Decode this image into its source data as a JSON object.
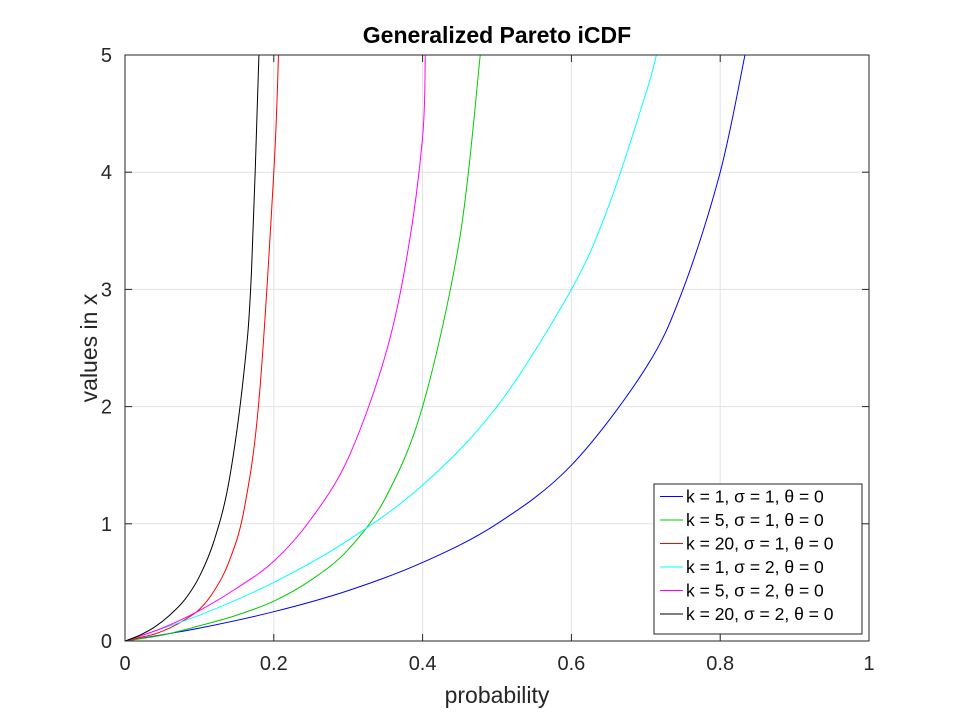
{
  "chart_data": {
    "type": "line",
    "title": "Generalized Pareto iCDF",
    "xlabel": "probability",
    "ylabel": "values in x",
    "xlim": [
      0,
      1
    ],
    "ylim": [
      0,
      5
    ],
    "xticks": [
      0,
      0.2,
      0.4,
      0.6,
      0.8,
      1
    ],
    "xtick_labels": [
      "0",
      "0.2",
      "0.4",
      "0.6",
      "0.8",
      "1"
    ],
    "yticks": [
      0,
      1,
      2,
      3,
      4,
      5
    ],
    "ytick_labels": [
      "0",
      "1",
      "2",
      "3",
      "4",
      "5"
    ],
    "grid": true,
    "legend_position": "bottom-right",
    "series": [
      {
        "name": "k = 1, σ = 1, θ = 0",
        "color": "#0000ff",
        "x": [
          0,
          0.1,
          0.2,
          0.3,
          0.4,
          0.5,
          0.6,
          0.7,
          0.75,
          0.8,
          0.8333
        ],
        "y": [
          0,
          0.11,
          0.25,
          0.43,
          0.67,
          1.0,
          1.5,
          2.33,
          3.0,
          4.0,
          5.0
        ]
      },
      {
        "name": "k = 5, σ = 1, θ = 0",
        "color": "#00cc00",
        "x": [
          0,
          0.05,
          0.1,
          0.15,
          0.2,
          0.25,
          0.3,
          0.35,
          0.4,
          0.45,
          0.4775
        ],
        "y": [
          0,
          0.05,
          0.13,
          0.22,
          0.34,
          0.52,
          0.78,
          1.22,
          2.0,
          3.44,
          5.0
        ]
      },
      {
        "name": "k = 20, σ = 1, θ = 0",
        "color": "#ff0000",
        "x": [
          0,
          0.02,
          0.04,
          0.06,
          0.08,
          0.1,
          0.12,
          0.14,
          0.16,
          0.18,
          0.2,
          0.2063
        ],
        "y": [
          0,
          0.03,
          0.06,
          0.11,
          0.18,
          0.27,
          0.43,
          0.68,
          1.12,
          2.05,
          4.0,
          5.0
        ]
      },
      {
        "name": "k = 1, σ = 2, θ = 0",
        "color": "#00ffff",
        "x": [
          0,
          0.1,
          0.2,
          0.3,
          0.4,
          0.5,
          0.6,
          0.65,
          0.7,
          0.7143
        ],
        "y": [
          0,
          0.22,
          0.5,
          0.86,
          1.33,
          2.0,
          3.0,
          3.71,
          4.67,
          5.0
        ]
      },
      {
        "name": "k = 5, σ = 2, θ = 0",
        "color": "#ff00ff",
        "x": [
          0,
          0.05,
          0.1,
          0.15,
          0.2,
          0.25,
          0.3,
          0.35,
          0.38,
          0.4,
          0.4036
        ],
        "y": [
          0,
          0.11,
          0.26,
          0.45,
          0.68,
          1.04,
          1.56,
          2.44,
          3.32,
          4.3,
          5.0
        ]
      },
      {
        "name": "k = 20, σ = 2, θ = 0",
        "color": "#000000",
        "x": [
          0,
          0.02,
          0.04,
          0.06,
          0.08,
          0.1,
          0.12,
          0.14,
          0.16,
          0.17,
          0.18
        ],
        "y": [
          0,
          0.05,
          0.12,
          0.22,
          0.35,
          0.55,
          0.86,
          1.37,
          2.3,
          3.15,
          5.0
        ]
      }
    ]
  }
}
